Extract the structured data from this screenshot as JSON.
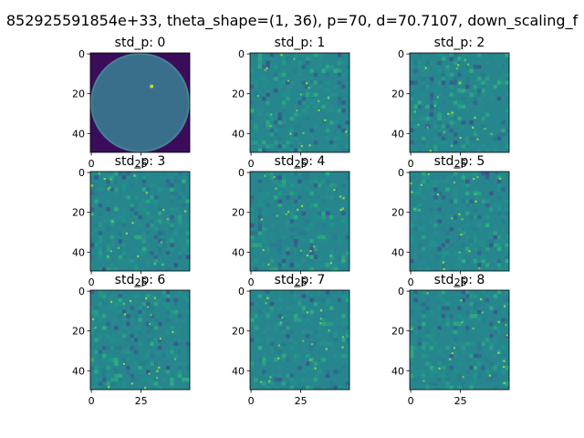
{
  "figure": {
    "suptitle": "852925591854e+33, theta_shape=(1, 36), p=70, d=70.7107, down_scaling_f"
  },
  "chart_data": {
    "type": "heatmap",
    "layout": "3x3 grid",
    "colormap": "viridis",
    "image_size": [
      50,
      50
    ],
    "xlim": [
      0,
      49
    ],
    "ylim": [
      49,
      0
    ],
    "x_ticks": [
      0,
      25
    ],
    "y_ticks": [
      0,
      20,
      40
    ],
    "panels": [
      {
        "title": "std_p: 0",
        "content": "disc",
        "disc_center": [
          25,
          25
        ],
        "disc_radius": 25,
        "hot_pixel": [
          30,
          16
        ]
      },
      {
        "title": "std_p: 1",
        "content": "noise"
      },
      {
        "title": "std_p: 2",
        "content": "noise"
      },
      {
        "title": "std_p: 3",
        "content": "noise"
      },
      {
        "title": "std_p: 4",
        "content": "noise"
      },
      {
        "title": "std_p: 5",
        "content": "noise"
      },
      {
        "title": "std_p: 6",
        "content": "noise"
      },
      {
        "title": "std_p: 7",
        "content": "noise"
      },
      {
        "title": "std_p: 8",
        "content": "noise"
      }
    ]
  }
}
